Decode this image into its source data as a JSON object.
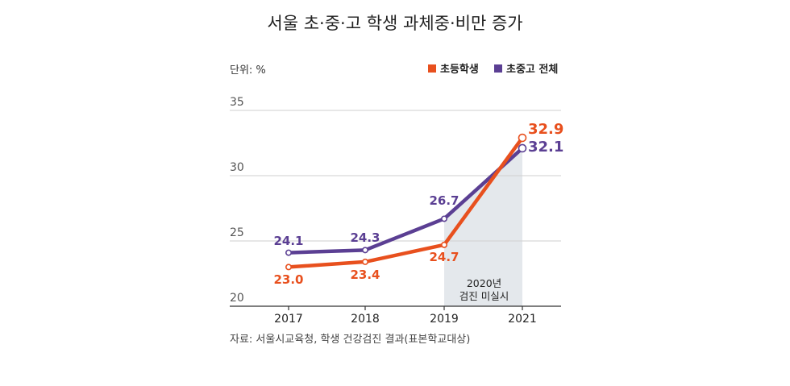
{
  "chart_data": {
    "type": "line",
    "title": "서울 초·중·고 학생 과체중·비만 증가",
    "unit_label": "단위: %",
    "categories": [
      "2017",
      "2018",
      "2019",
      "2021"
    ],
    "y_ticks": [
      "35",
      "30",
      "25",
      "20"
    ],
    "ylim": [
      20,
      35
    ],
    "series": [
      {
        "name": "초등학생",
        "color": "#e8501e",
        "values": [
          23.0,
          23.4,
          24.7,
          32.9
        ],
        "labels": [
          "23.0",
          "23.4",
          "24.7",
          "32.9"
        ]
      },
      {
        "name": "초중고 전체",
        "color": "#5b3f93",
        "values": [
          24.1,
          24.3,
          26.7,
          32.1
        ],
        "labels": [
          "24.1",
          "24.3",
          "26.7",
          "32.1"
        ]
      }
    ],
    "annotation": {
      "line1": "2020년",
      "line2": "검진 미실시",
      "fill": "#e4e8ec"
    },
    "source": "자료: 서울시교육청, 학생 건강검진 결과(표본학교대상)"
  }
}
